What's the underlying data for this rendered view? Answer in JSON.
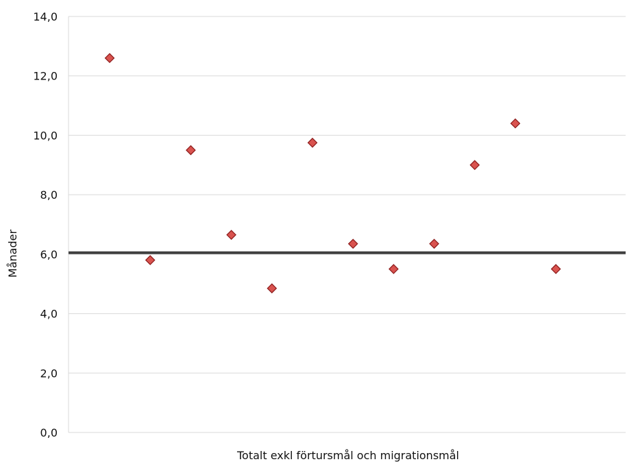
{
  "chart_data": {
    "type": "scatter",
    "title": "",
    "xlabel": "Totalt exkl förtursmål och migrationsmål",
    "ylabel": "Månader",
    "ylim": [
      0,
      14
    ],
    "yticks": [
      "0,0",
      "2,0",
      "4,0",
      "6,0",
      "8,0",
      "10,0",
      "12,0",
      "14,0"
    ],
    "grid": true,
    "legend": "none",
    "series": [
      {
        "marker": "diamond",
        "color": "#d9534f",
        "x": [
          1,
          2,
          3,
          4,
          5,
          6,
          7,
          8,
          9,
          10,
          11,
          12
        ],
        "values": [
          12.6,
          5.8,
          9.5,
          6.65,
          4.85,
          9.75,
          6.35,
          5.5,
          6.35,
          9.0,
          10.4,
          5.5
        ]
      }
    ],
    "reference_line": {
      "value": 6.05,
      "color": "#404040"
    }
  }
}
